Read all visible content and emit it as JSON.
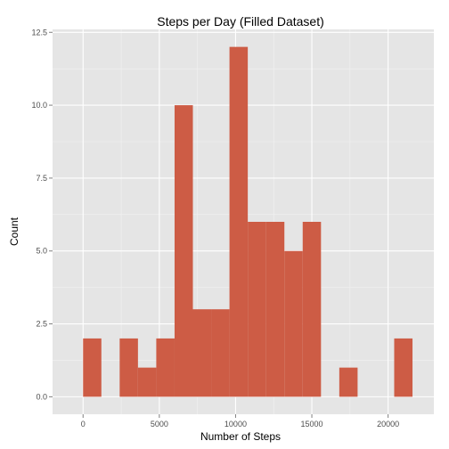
{
  "chart_data": {
    "type": "bar",
    "title": "Steps per Day (Filled Dataset)",
    "xlabel": "Number of Steps",
    "ylabel": "Count",
    "xlim": [
      -2000,
      23000
    ],
    "ylim": [
      -0.6,
      12.6
    ],
    "x_ticks": [
      0,
      5000,
      10000,
      15000,
      20000
    ],
    "x_tick_labels": [
      "0",
      "5000",
      "10000",
      "15000",
      "20000"
    ],
    "y_ticks": [
      0,
      2.5,
      5,
      7.5,
      10,
      12.5
    ],
    "y_tick_labels": [
      "0.0",
      "2.5",
      "5.0",
      "7.5",
      "10.0",
      "12.5"
    ],
    "bin_width": 1200,
    "bins": [
      {
        "x_start": 0,
        "x_end": 1200,
        "count": 2
      },
      {
        "x_start": 1200,
        "x_end": 2400,
        "count": 0
      },
      {
        "x_start": 2400,
        "x_end": 3600,
        "count": 2
      },
      {
        "x_start": 3600,
        "x_end": 4800,
        "count": 1
      },
      {
        "x_start": 4800,
        "x_end": 6000,
        "count": 2
      },
      {
        "x_start": 6000,
        "x_end": 7200,
        "count": 10
      },
      {
        "x_start": 7200,
        "x_end": 8400,
        "count": 3
      },
      {
        "x_start": 8400,
        "x_end": 9600,
        "count": 3
      },
      {
        "x_start": 9600,
        "x_end": 10800,
        "count": 12
      },
      {
        "x_start": 10800,
        "x_end": 12000,
        "count": 6
      },
      {
        "x_start": 12000,
        "x_end": 13200,
        "count": 6
      },
      {
        "x_start": 13200,
        "x_end": 14400,
        "count": 5
      },
      {
        "x_start": 14400,
        "x_end": 15600,
        "count": 6
      },
      {
        "x_start": 15600,
        "x_end": 16800,
        "count": 0
      },
      {
        "x_start": 16800,
        "x_end": 18000,
        "count": 1
      },
      {
        "x_start": 18000,
        "x_end": 19200,
        "count": 0
      },
      {
        "x_start": 19200,
        "x_end": 20400,
        "count": 0
      },
      {
        "x_start": 20400,
        "x_end": 21600,
        "count": 2
      }
    ],
    "colors": {
      "bar_fill": "#cd5c45",
      "panel_background": "#e5e5e5",
      "grid_major": "#ffffff",
      "grid_minor": "#f2f2f2",
      "tick_text": "#4d4d4d"
    },
    "grid": true,
    "legend": "none"
  }
}
